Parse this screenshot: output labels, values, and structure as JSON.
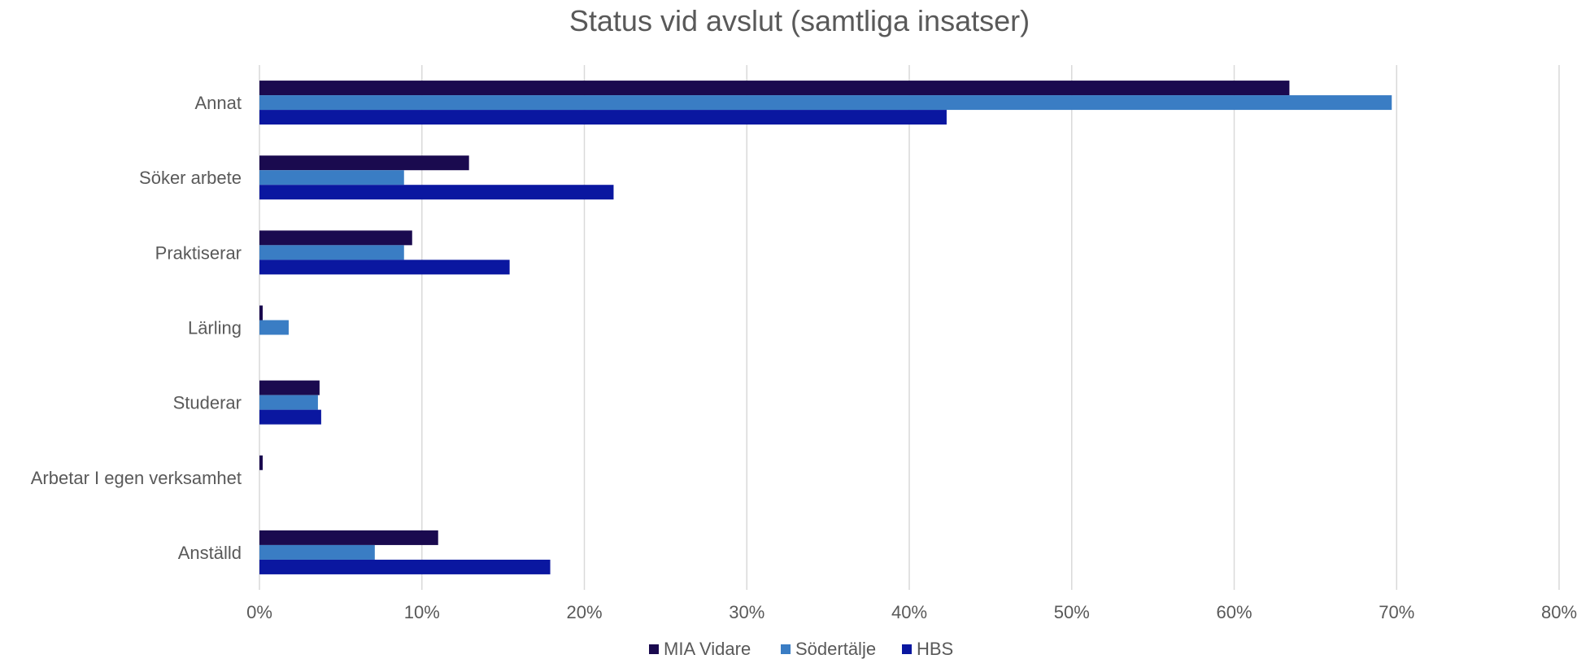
{
  "chart_data": {
    "type": "bar",
    "orientation": "horizontal",
    "title": "Status vid avslut (samtliga insatser)",
    "categories": [
      "Annat",
      "Söker arbete",
      "Praktiserar",
      "Lärling",
      "Studerar",
      "Arbetar I egen verksamhet",
      "Anställd"
    ],
    "series": [
      {
        "name": "MIA Vidare",
        "color": "#1a0a4f",
        "values": [
          63.4,
          12.9,
          9.4,
          0.2,
          3.7,
          0.2,
          11.0
        ]
      },
      {
        "name": "Södertälje",
        "color": "#3a7dc4",
        "values": [
          69.7,
          8.9,
          8.9,
          1.8,
          3.6,
          0.0,
          7.1
        ]
      },
      {
        "name": "HBS",
        "color": "#0a17a0",
        "values": [
          42.3,
          21.8,
          15.4,
          0.0,
          3.8,
          0.0,
          17.9
        ]
      }
    ],
    "xlim": [
      0,
      80
    ],
    "xticks": [
      "0%",
      "10%",
      "20%",
      "30%",
      "40%",
      "50%",
      "60%",
      "70%",
      "80%"
    ],
    "grid": true,
    "legend_position": "bottom"
  }
}
